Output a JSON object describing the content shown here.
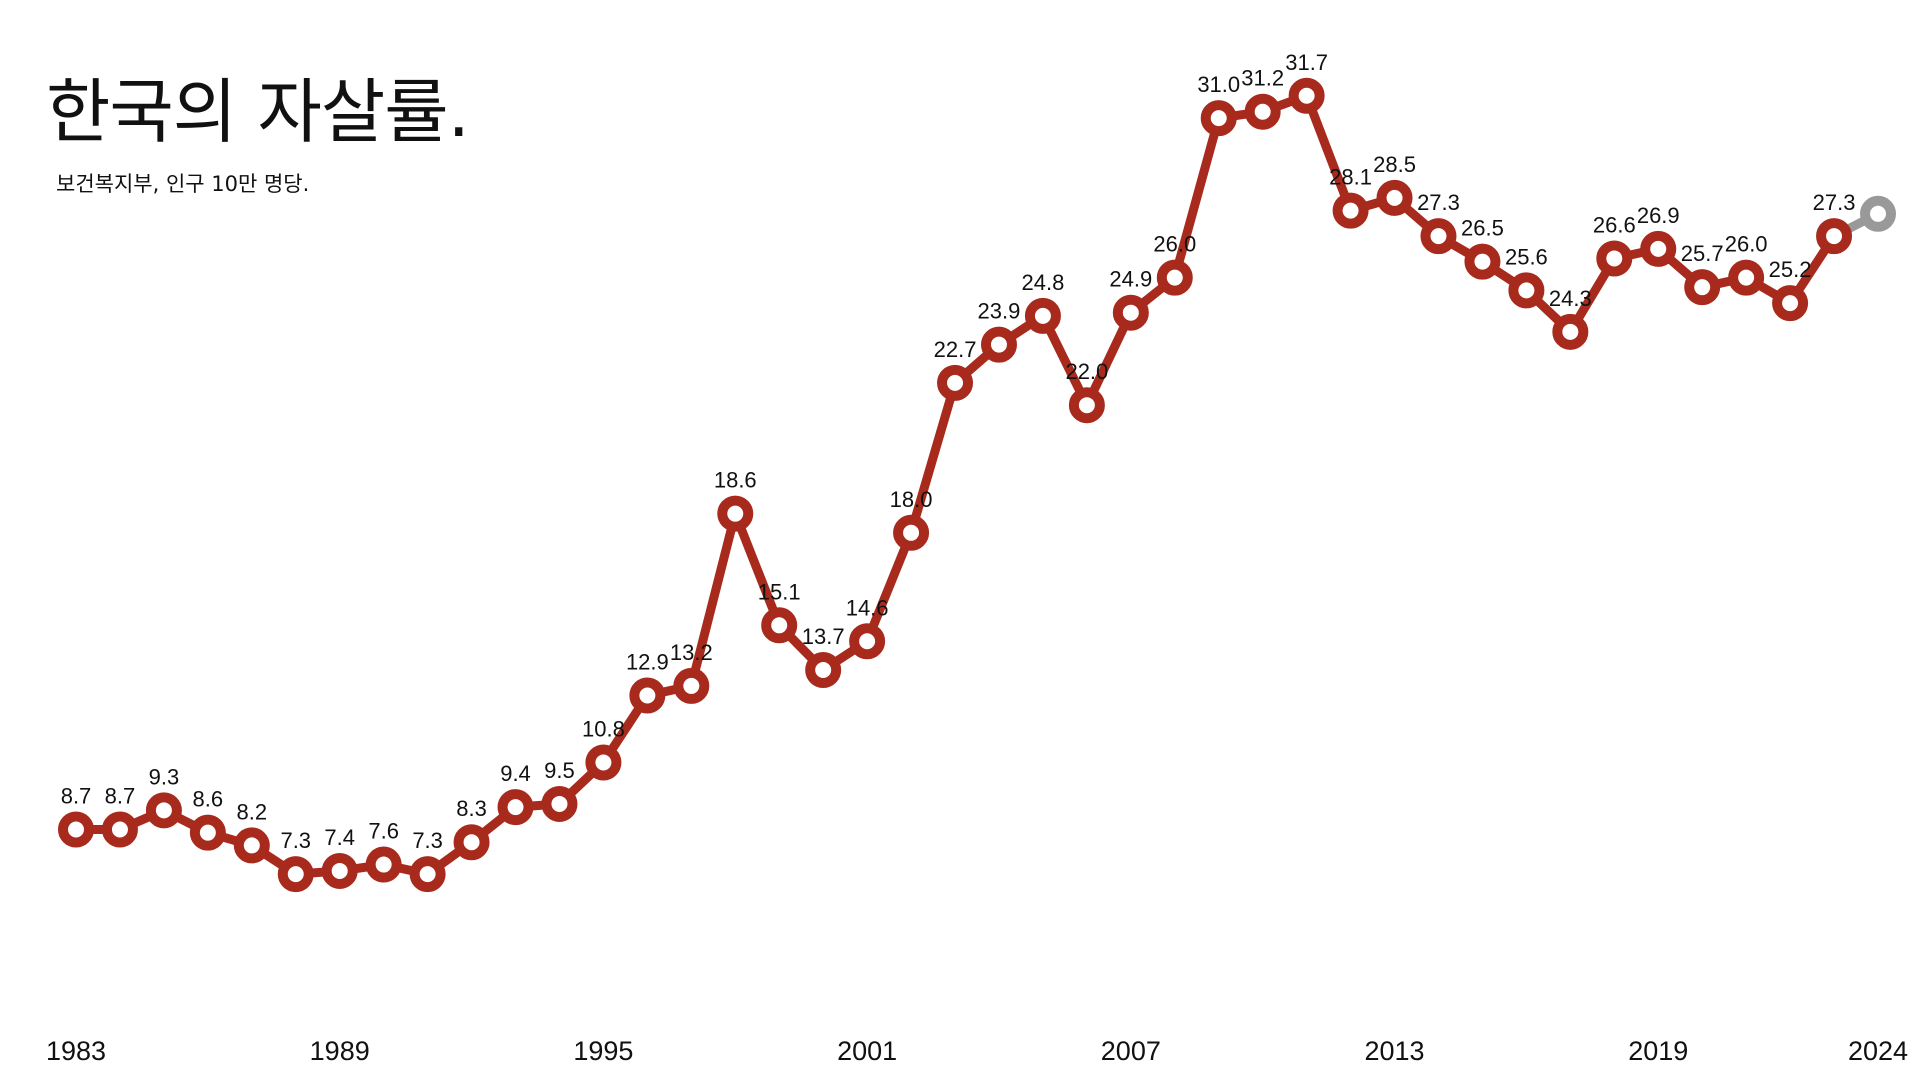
{
  "title": "한국의 자살률.",
  "subtitle": "보건복지부, 인구 10만 명당.",
  "colors": {
    "series": "#a82a1c",
    "projection": "#999999",
    "marker_fill": "#ffffff",
    "text": "#111111"
  },
  "chart_data": {
    "type": "line",
    "title": "한국의 자살률.",
    "subtitle": "보건복지부, 인구 10만 명당.",
    "xlabel": "",
    "ylabel": "",
    "x_ticks": [
      "1983",
      "1989",
      "1995",
      "2001",
      "2007",
      "2013",
      "2019",
      "2024"
    ],
    "xlim": [
      1983,
      2024
    ],
    "ylim": [
      0,
      34
    ],
    "grid": false,
    "legend": "none",
    "series": [
      {
        "x": [
          1983,
          1984,
          1985,
          1986,
          1987,
          1988,
          1989,
          1990,
          1991,
          1992,
          1993,
          1994,
          1995,
          1996,
          1997,
          1998,
          1999,
          2000,
          2001,
          2002,
          2003,
          2004,
          2005,
          2006,
          2007,
          2008,
          2009,
          2010,
          2011,
          2012,
          2013,
          2014,
          2015,
          2016,
          2017,
          2018,
          2019,
          2020,
          2021,
          2022,
          2023
        ],
        "values": [
          8.7,
          8.7,
          9.3,
          8.6,
          8.2,
          7.3,
          7.4,
          7.6,
          7.3,
          8.3,
          9.4,
          9.5,
          10.8,
          12.9,
          13.2,
          18.6,
          15.1,
          13.7,
          14.6,
          18.0,
          22.7,
          23.9,
          24.8,
          22.0,
          24.9,
          26.0,
          31.0,
          31.2,
          31.7,
          28.1,
          28.5,
          27.3,
          26.5,
          25.6,
          24.3,
          26.6,
          26.9,
          25.7,
          26.0,
          25.2,
          27.3
        ],
        "labels": [
          "8.7",
          "8.7",
          "9.3",
          "8.6",
          "8.2",
          "7.3",
          "7.4",
          "7.6",
          "7.3",
          "8.3",
          "9.4",
          "9.5",
          "10.8",
          "12.9",
          "13.2",
          "18.6",
          "15.1",
          "13.7",
          "14.6",
          "18.0",
          "22.7",
          "23.9",
          "24.8",
          "22.0",
          "24.9",
          "26.0",
          "31.0",
          "31.2",
          "31.7",
          "28.1",
          "28.5",
          "27.3",
          "26.5",
          "25.6",
          "24.3",
          "26.6",
          "26.9",
          "25.7",
          "26.0",
          "25.2",
          "27.3"
        ]
      },
      {
        "x": [
          2023,
          2024
        ],
        "values": [
          27.3,
          28.0
        ],
        "labels": [
          "",
          ""
        ]
      }
    ]
  }
}
